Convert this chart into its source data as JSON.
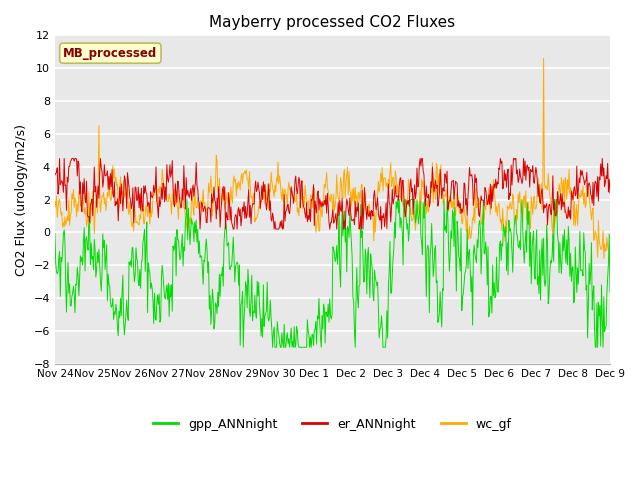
{
  "title": "Mayberry processed CO2 Fluxes",
  "ylabel": "CO2 Flux (urology/m2/s)",
  "ylim": [
    -8,
    12
  ],
  "yticks": [
    -8,
    -6,
    -4,
    -2,
    0,
    2,
    4,
    6,
    8,
    10,
    12
  ],
  "xtick_labels": [
    "Nov 24",
    "Nov 25",
    "Nov 26",
    "Nov 27",
    "Nov 28",
    "Nov 29",
    "Nov 30",
    "Dec 1",
    "Dec 2",
    "Dec 3",
    "Dec 4",
    "Dec 5",
    "Dec 6",
    "Dec 7",
    "Dec 8",
    "Dec 9"
  ],
  "colors": {
    "gpp": "#00dd00",
    "er": "#dd0000",
    "wc": "#ffaa00"
  },
  "legend_labels": [
    "gpp_ANNnight",
    "er_ANNnight",
    "wc_gf"
  ],
  "annotation_text": "MB_processed",
  "annotation_color": "#880000",
  "annotation_bg": "#ffffcc",
  "plot_bg": "#e8e8e8",
  "grid_color": "#ffffff",
  "n_points": 720,
  "seed": 123
}
